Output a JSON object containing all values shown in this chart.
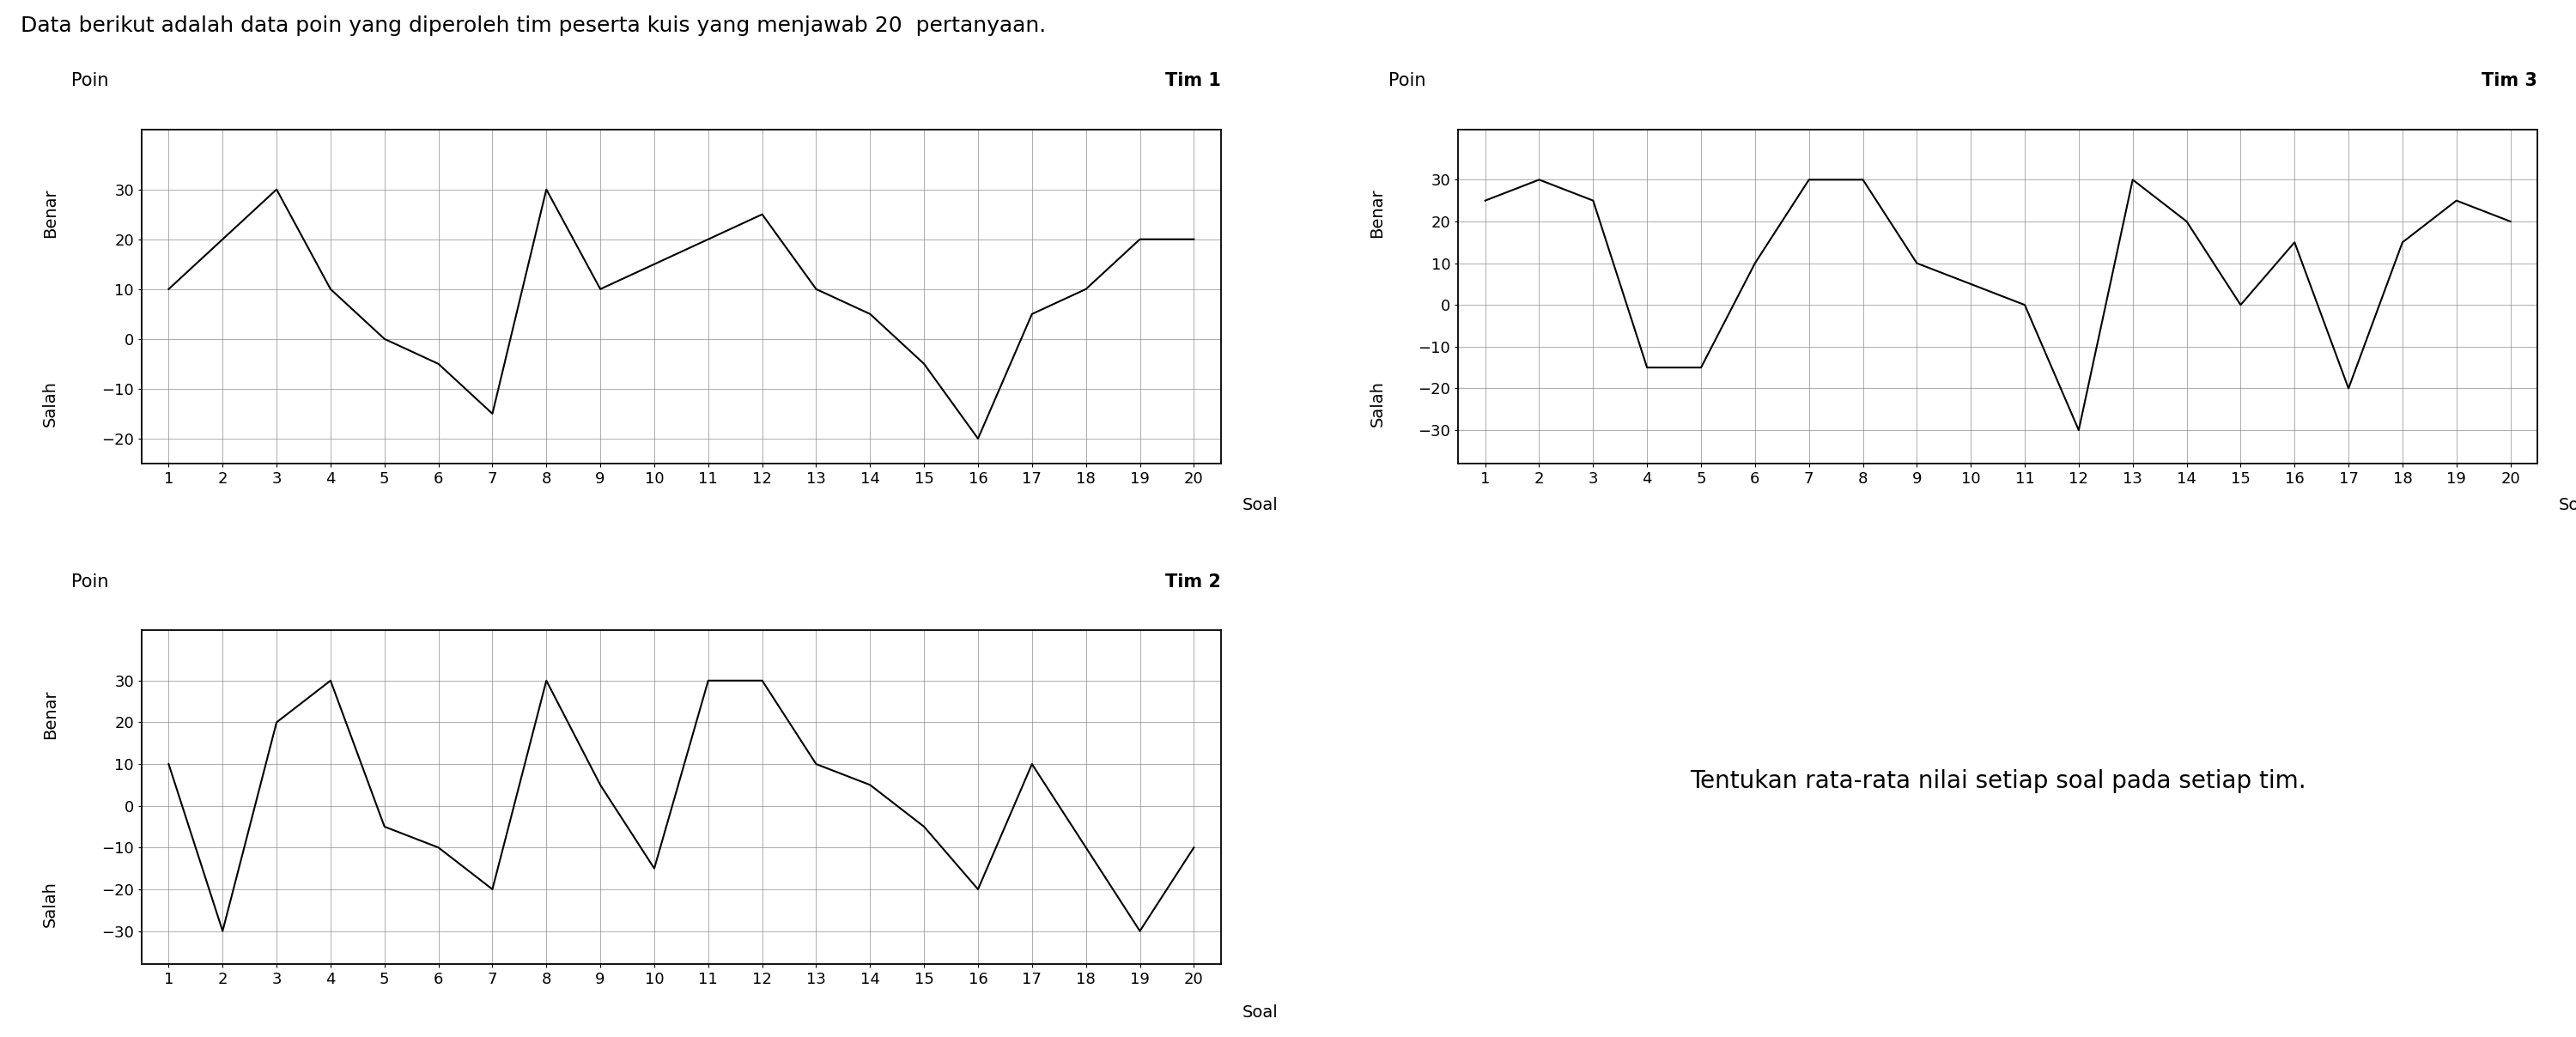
{
  "title": "Data berikut adalah data poin yang diperoleh tim peserta kuis yang menjawab 20  pertanyaan.",
  "subtitle": "Tentukan rata-rata nilai setiap soal pada setiap tim.",
  "soal": [
    1,
    2,
    3,
    4,
    5,
    6,
    7,
    8,
    9,
    10,
    11,
    12,
    13,
    14,
    15,
    16,
    17,
    18,
    19,
    20
  ],
  "tim1_y": [
    10,
    20,
    30,
    10,
    0,
    -5,
    -15,
    30,
    10,
    15,
    20,
    25,
    10,
    5,
    -5,
    -20,
    5,
    10,
    20,
    20
  ],
  "tim2_y": [
    10,
    -30,
    20,
    30,
    -5,
    -10,
    -20,
    30,
    5,
    -15,
    30,
    30,
    10,
    5,
    -5,
    -20,
    10,
    -10,
    -30,
    -10
  ],
  "tim3_y": [
    25,
    30,
    25,
    -15,
    -15,
    10,
    30,
    30,
    10,
    5,
    0,
    -30,
    30,
    20,
    0,
    15,
    -20,
    15,
    25,
    20
  ],
  "yticks1": [
    -20,
    -10,
    0,
    10,
    20,
    30
  ],
  "yticks23": [
    -30,
    -20,
    -10,
    0,
    10,
    20,
    30
  ],
  "ylim1": [
    -25,
    42
  ],
  "ylim23": [
    -38,
    42
  ],
  "bg_color": "#ffffff",
  "line_color": "#000000",
  "grid_color": "#888888",
  "title_fontsize": 18,
  "label_fontsize": 15,
  "tick_fontsize": 13,
  "axis_label_fontsize": 14,
  "subtitle_fontsize": 20
}
